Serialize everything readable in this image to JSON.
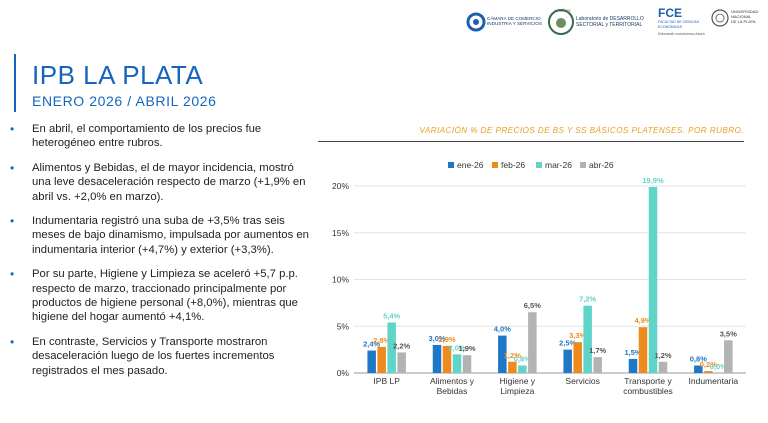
{
  "logos": {
    "ccis_text": [
      "CÁMARA DE COMERCIO",
      "INDUSTRIA Y SERVICIOS"
    ],
    "aniversario": "10 AÑOS",
    "lab_text": [
      "Laboratorio de DESARROLLO",
      "SECTORIAL y TERRITORIAL"
    ],
    "fce": "FCE",
    "fce_sub": [
      "FACULTAD DE CIENCIAS",
      "ECONÓMICAS"
    ],
    "fce_slogan": "Educando construimos futuro",
    "unlp_text": [
      "UNIVERSIDAD",
      "NACIONAL",
      "DE LA PLATA"
    ]
  },
  "header": {
    "title": "IPB LA PLATA",
    "subtitle": "ENERO 2026 / ABRIL 2026"
  },
  "bullets": [
    "En abril, el comportamiento de los precios fue heterogéneo entre rubros.",
    "Alimentos y Bebidas, el de mayor incidencia, mostró una leve desaceleración respecto de marzo (+1,9% en abril vs. +2,0% en marzo).",
    "Indumentaria registró una suba de +3,5% tras seis meses de bajo dinamismo, impulsada por aumentos en indumentaria interior (+4,7%) y exterior (+3,3%).",
    "Por su parte, Higiene y Limpieza se aceleró +5,7 p.p. respecto de marzo, traccionado principalmente por productos de higiene personal (+8,0%), mientras que higiene del hogar aumentó +4,1%.",
    "En contraste, Servicios y Transporte mostraron desaceleración luego de los fuertes incrementos registrados el mes pasado."
  ],
  "chart_data": {
    "type": "bar",
    "title": "VARIACIÓN % DE PRECIOS DE BS Y SS BÁSICOS PLATENSES. POR RUBRO.",
    "categories": [
      [
        "IPB LP"
      ],
      [
        "Alimentos y",
        "Bebidas"
      ],
      [
        "Higiene y",
        "Limpieza"
      ],
      [
        "Servicios"
      ],
      [
        "Transporte y",
        "combustibles"
      ],
      [
        "Indumentaria"
      ]
    ],
    "series": [
      {
        "name": "ene-26",
        "color": "#1f77c8",
        "values": [
          2.4,
          3.0,
          4.0,
          2.5,
          1.5,
          0.8
        ],
        "labels": [
          "2,4%",
          "3,0%",
          "4,0%",
          "2,5%",
          "1,5%",
          "0,8%"
        ]
      },
      {
        "name": "feb-26",
        "color": "#ef8b1e",
        "values": [
          2.8,
          2.9,
          1.2,
          3.3,
          4.9,
          0.2
        ],
        "labels": [
          "2,8%",
          "2,9%",
          "1,2%",
          "3,3%",
          "4,9%",
          "0,2%"
        ]
      },
      {
        "name": "mar-26",
        "color": "#5fd4c8",
        "values": [
          5.4,
          2.0,
          0.8,
          7.2,
          19.9,
          0.0
        ],
        "labels": [
          "5,4%",
          "2,0%",
          "0,8%",
          "7,2%",
          "19,9%",
          "0,0%"
        ]
      },
      {
        "name": "abr-26",
        "color": "#b3b3b3",
        "values": [
          2.2,
          1.9,
          6.5,
          1.7,
          1.2,
          3.5
        ],
        "labels": [
          "2,2%",
          "1,9%",
          "6,5%",
          "1,7%",
          "1,2%",
          "3,5%"
        ]
      }
    ],
    "ylim": [
      0,
      20
    ],
    "yticks": [
      "0%",
      "5%",
      "10%",
      "15%",
      "20%"
    ],
    "legend": "top",
    "grid": true
  }
}
